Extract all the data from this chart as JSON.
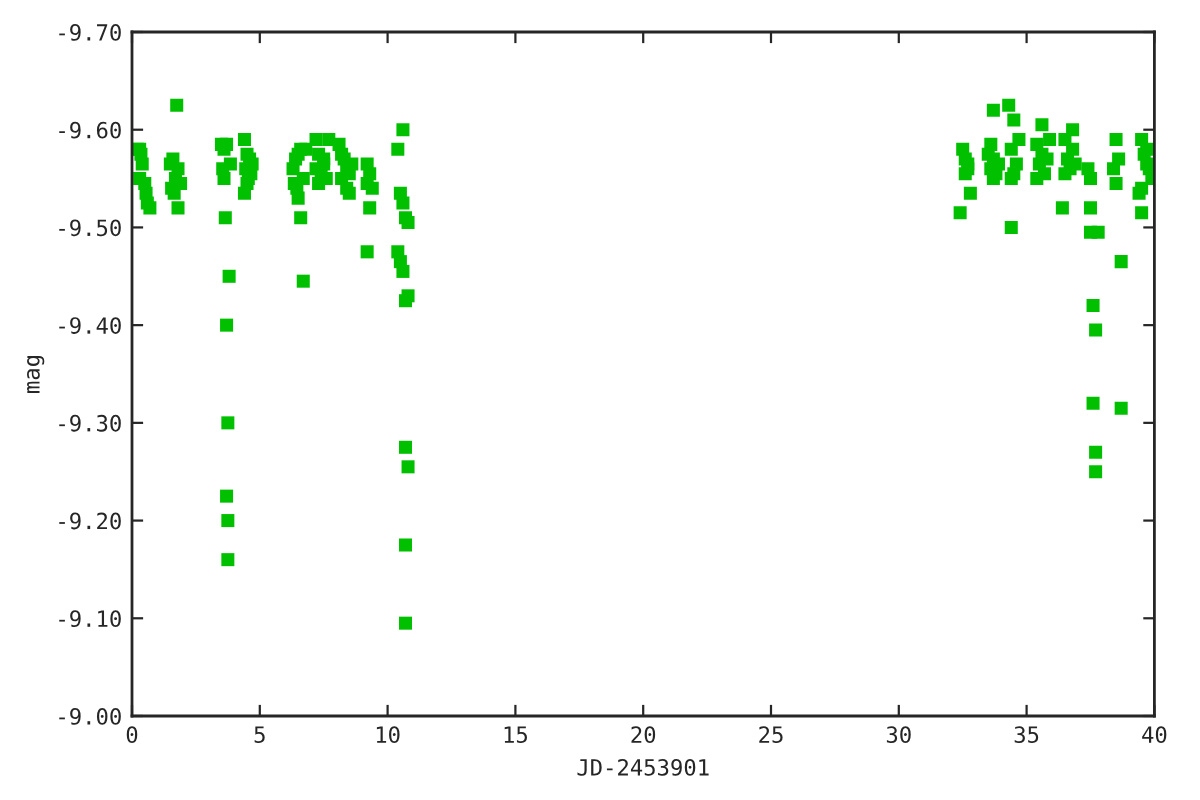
{
  "chart_data": {
    "type": "scatter",
    "xlabel": "JD-2453901",
    "ylabel": "mag",
    "xlim": [
      0,
      40
    ],
    "xticks": [
      0,
      5,
      10,
      15,
      20,
      25,
      30,
      35,
      40
    ],
    "ylim": [
      -9.0,
      -9.7
    ],
    "yticks": [
      {
        "value": -9.7,
        "label": "-9.70"
      },
      {
        "value": -9.6,
        "label": "-9.60"
      },
      {
        "value": -9.5,
        "label": "-9.50"
      },
      {
        "value": -9.4,
        "label": "-9.40"
      },
      {
        "value": -9.3,
        "label": "-9.30"
      },
      {
        "value": -9.2,
        "label": "-9.20"
      },
      {
        "value": -9.1,
        "label": "-9.10"
      },
      {
        "value": -9.0,
        "label": "-9.00"
      }
    ],
    "grid": false,
    "marker": "square",
    "series": [
      {
        "color": "#00c000",
        "x": [
          0.2,
          0.3,
          0.35,
          0.4,
          0.5,
          0.3,
          0.55,
          0.6,
          0.7,
          1.5,
          1.6,
          1.7,
          1.8,
          1.55,
          1.65,
          1.8,
          1.75,
          1.9,
          3.5,
          3.6,
          3.55,
          3.7,
          3.6,
          3.65,
          3.8,
          3.7,
          3.75,
          3.7,
          3.75,
          3.75,
          3.85,
          4.4,
          4.5,
          4.6,
          4.45,
          4.55,
          4.5,
          4.4,
          4.7,
          4.65,
          6.3,
          6.4,
          6.5,
          6.6,
          6.35,
          6.45,
          6.5,
          6.6,
          6.7,
          6.7,
          6.8,
          7.2,
          7.3,
          7.5,
          7.2,
          7.4,
          7.6,
          7.3,
          7.5,
          7.7,
          8.1,
          8.2,
          8.3,
          8.4,
          8.5,
          8.2,
          8.4,
          8.6,
          8.5,
          9.2,
          9.3,
          9.2,
          9.4,
          9.3,
          9.2,
          10.4,
          10.6,
          10.5,
          10.6,
          10.7,
          10.8,
          10.4,
          10.5,
          10.6,
          10.8,
          10.7,
          10.7,
          10.8,
          10.7,
          10.7,
          32.5,
          32.6,
          32.7,
          32.6,
          32.8,
          32.4,
          32.7,
          33.7,
          33.6,
          33.5,
          33.7,
          33.6,
          33.8,
          33.7,
          33.9,
          34.3,
          34.5,
          34.7,
          34.4,
          34.6,
          34.5,
          34.4,
          34.4,
          35.6,
          35.9,
          35.4,
          35.6,
          35.8,
          35.5,
          35.7,
          35.4,
          36.8,
          36.5,
          36.8,
          36.6,
          36.7,
          36.5,
          36.9,
          36.4,
          37.4,
          37.5,
          37.5,
          37.5,
          37.8,
          37.6,
          37.7,
          37.6,
          37.7,
          37.7,
          38.5,
          38.6,
          38.4,
          38.5,
          38.7,
          38.7,
          39.5,
          39.7,
          39.6,
          39.7,
          39.8,
          39.9,
          39.5,
          39.4,
          39.5
        ],
        "values": [
          -9.58,
          -9.58,
          -9.575,
          -9.565,
          -9.545,
          -9.55,
          -9.535,
          -9.525,
          -9.52,
          -9.565,
          -9.57,
          -9.55,
          -9.56,
          -9.54,
          -9.535,
          -9.52,
          -9.625,
          -9.545,
          -9.585,
          -9.58,
          -9.56,
          -9.585,
          -9.55,
          -9.51,
          -9.45,
          -9.4,
          -9.3,
          -9.225,
          -9.2,
          -9.16,
          -9.565,
          -9.59,
          -9.575,
          -9.57,
          -9.56,
          -9.55,
          -9.545,
          -9.535,
          -9.565,
          -9.555,
          -9.56,
          -9.57,
          -9.575,
          -9.58,
          -9.545,
          -9.54,
          -9.53,
          -9.51,
          -9.445,
          -9.55,
          -9.58,
          -9.59,
          -9.575,
          -9.57,
          -9.56,
          -9.555,
          -9.55,
          -9.545,
          -9.565,
          -9.59,
          -9.585,
          -9.575,
          -9.57,
          -9.56,
          -9.555,
          -9.55,
          -9.54,
          -9.565,
          -9.535,
          -9.565,
          -9.555,
          -9.545,
          -9.54,
          -9.52,
          -9.475,
          -9.58,
          -9.6,
          -9.535,
          -9.525,
          -9.51,
          -9.505,
          -9.475,
          -9.465,
          -9.455,
          -9.43,
          -9.425,
          -9.275,
          -9.255,
          -9.175,
          -9.095,
          -9.58,
          -9.57,
          -9.56,
          -9.555,
          -9.535,
          -9.515,
          -9.565,
          -9.62,
          -9.585,
          -9.575,
          -9.57,
          -9.56,
          -9.555,
          -9.55,
          -9.565,
          -9.625,
          -9.61,
          -9.59,
          -9.58,
          -9.565,
          -9.555,
          -9.55,
          -9.5,
          -9.605,
          -9.59,
          -9.585,
          -9.575,
          -9.57,
          -9.565,
          -9.555,
          -9.55,
          -9.6,
          -9.59,
          -9.58,
          -9.57,
          -9.56,
          -9.555,
          -9.565,
          -9.52,
          -9.56,
          -9.55,
          -9.52,
          -9.495,
          -9.495,
          -9.42,
          -9.395,
          -9.32,
          -9.27,
          -9.25,
          -9.59,
          -9.57,
          -9.56,
          -9.545,
          -9.465,
          -9.315,
          -9.59,
          -9.58,
          -9.575,
          -9.565,
          -9.56,
          -9.55,
          -9.54,
          -9.535,
          -9.515
        ]
      }
    ]
  }
}
